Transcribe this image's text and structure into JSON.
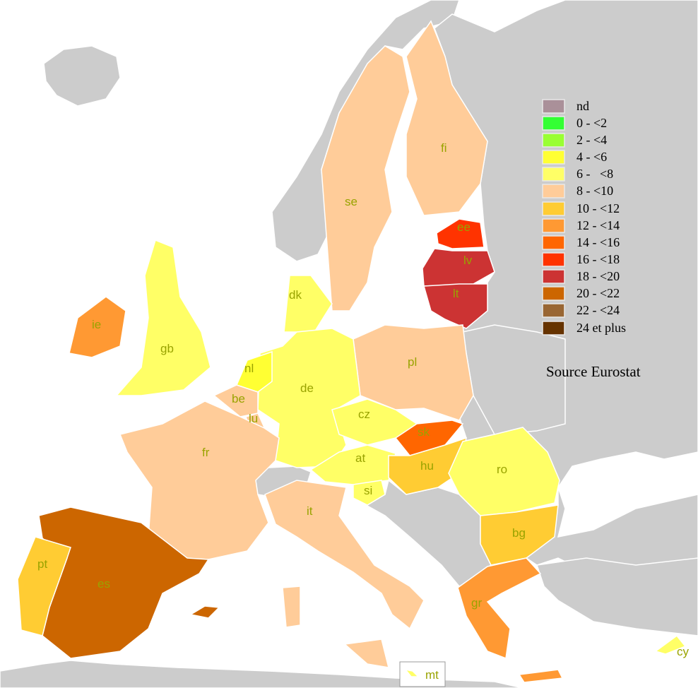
{
  "legend": {
    "classes": [
      {
        "label": "nd",
        "color": "#aa9099"
      },
      {
        "label": "0 - <2",
        "color": "#33ff33"
      },
      {
        "label": "2 - <4",
        "color": "#99ff33"
      },
      {
        "label": "4 - <6",
        "color": "#ffff33"
      },
      {
        "label": "6 -   <8",
        "color": "#ffff66"
      },
      {
        "label": "8 - <10",
        "color": "#ffcc99"
      },
      {
        "label": "10 - <12",
        "color": "#ffcc33"
      },
      {
        "label": "12 - <14",
        "color": "#ff9933"
      },
      {
        "label": "14 - <16",
        "color": "#ff6600"
      },
      {
        "label": "16 - <18",
        "color": "#ff3300"
      },
      {
        "label": "18 - <20",
        "color": "#cc3333"
      },
      {
        "label": "20 - <22",
        "color": "#cc6600"
      },
      {
        "label": "22 - <24",
        "color": "#996633"
      },
      {
        "label": "24 et plus",
        "color": "#663300"
      }
    ]
  },
  "source": "Source Eurostat",
  "colors": {
    "land": "#cccccc",
    "sea": "#ffffff",
    "label": "#99a300"
  },
  "countries": {
    "se": {
      "label": "se",
      "class": "8 - <10"
    },
    "fi": {
      "label": "fi",
      "class": "8 - <10"
    },
    "ee": {
      "label": "ee",
      "class": "16 - <18"
    },
    "lv": {
      "label": "lv",
      "class": "18 - <20"
    },
    "lt": {
      "label": "lt",
      "class": "18 - <20"
    },
    "pl": {
      "label": "pl",
      "class": "8 - <10"
    },
    "dk": {
      "label": "dk",
      "class": "6 -   <8"
    },
    "de": {
      "label": "de",
      "class": "6 -   <8"
    },
    "nl": {
      "label": "nl",
      "class": "4 - <6"
    },
    "be": {
      "label": "be",
      "class": "8 - <10"
    },
    "lu": {
      "label": "lu",
      "class": "8 - <10"
    },
    "fr": {
      "label": "fr",
      "class": "8 - <10"
    },
    "gb": {
      "label": "gb",
      "class": "6 -   <8"
    },
    "ie": {
      "label": "ie",
      "class": "12 - <14"
    },
    "es": {
      "label": "es",
      "class": "20 - <22"
    },
    "pt": {
      "label": "pt",
      "class": "10 - <12"
    },
    "it": {
      "label": "it",
      "class": "8 - <10"
    },
    "cz": {
      "label": "cz",
      "class": "6 -   <8"
    },
    "sk": {
      "label": "sk",
      "class": "14 - <16"
    },
    "at": {
      "label": "at",
      "class": "6 -   <8"
    },
    "si": {
      "label": "si",
      "class": "6 -   <8"
    },
    "hu": {
      "label": "hu",
      "class": "10 - <12"
    },
    "ro": {
      "label": "ro",
      "class": "6 -   <8"
    },
    "bg": {
      "label": "bg",
      "class": "10 - <12"
    },
    "gr": {
      "label": "gr",
      "class": "12 - <14"
    },
    "cy": {
      "label": "cy",
      "class": "6 -   <8"
    },
    "mt": {
      "label": "mt",
      "class": "6 -   <8"
    }
  }
}
